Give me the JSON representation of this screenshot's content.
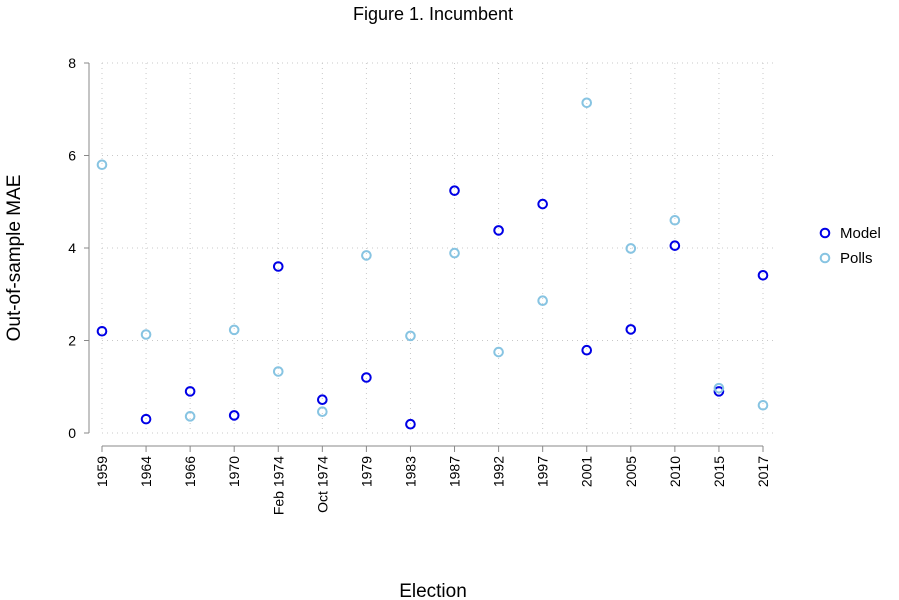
{
  "chart_data": {
    "type": "scatter",
    "title": "Figure 1. Incumbent",
    "xlabel": "Election",
    "ylabel": "Out-of-sample MAE",
    "categories": [
      "1959",
      "1964",
      "1966",
      "1970",
      "Feb 1974",
      "Oct 1974",
      "1979",
      "1983",
      "1987",
      "1992",
      "1997",
      "2001",
      "2005",
      "2010",
      "2015",
      "2017"
    ],
    "ylim": [
      0,
      8
    ],
    "yticks": [
      0,
      2,
      4,
      6,
      8
    ],
    "grid": true,
    "legend_position": "right",
    "series": [
      {
        "name": "Model",
        "color": "#0000e6",
        "values": [
          2.2,
          0.3,
          0.9,
          0.38,
          3.6,
          0.72,
          1.2,
          0.19,
          5.24,
          4.38,
          4.95,
          1.79,
          2.24,
          4.05,
          0.9,
          3.41
        ]
      },
      {
        "name": "Polls",
        "color": "#87c4e2",
        "values": [
          5.8,
          2.13,
          0.36,
          2.23,
          1.33,
          0.46,
          3.84,
          2.1,
          3.89,
          1.75,
          2.86,
          7.14,
          3.99,
          4.6,
          0.97,
          0.6
        ]
      }
    ]
  }
}
